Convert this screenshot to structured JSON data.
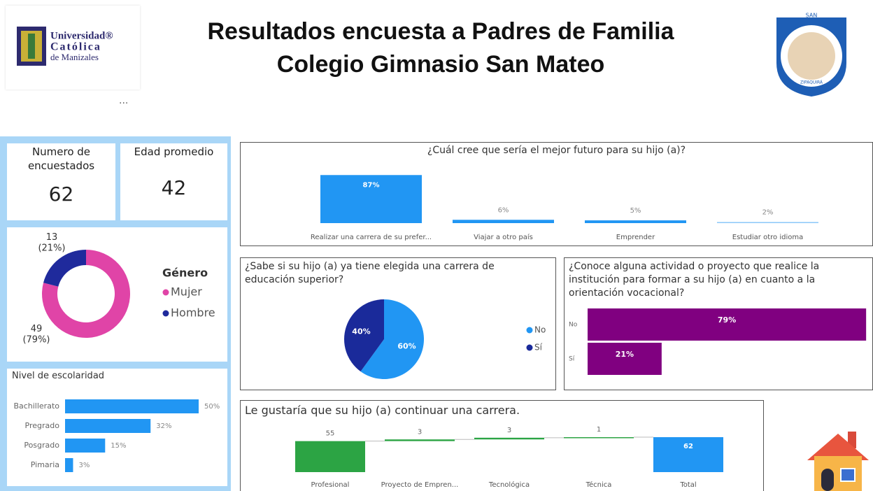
{
  "header": {
    "title": [
      "Resultados encuesta a Padres de Familia",
      "Colegio Gimnasio San Mateo"
    ],
    "logo_left": [
      "Universidad®",
      "Católica",
      "de Manizales"
    ],
    "menu": "...",
    "logo_right": [
      "SAN",
      "ZIPAQUIRÁ"
    ]
  },
  "kpis": [
    {
      "label": "Numero de encuestados",
      "value": 62
    },
    {
      "label": "Edad promedio",
      "value": 42
    }
  ],
  "chart_data": [
    {
      "type": "donut",
      "legend_title": "Género",
      "categories": [
        "Mujer",
        "Hombre"
      ],
      "values": [
        49,
        13
      ],
      "value_labels": [
        "49\n(79%)",
        "13\n(21%)"
      ],
      "colors": [
        "#e044a7",
        "#1f2a9c"
      ]
    },
    {
      "type": "hbar",
      "title": "Nivel de escolaridad",
      "categories": [
        "Bachillerato",
        "Pregrado",
        "Posgrado",
        "Pimaria"
      ],
      "values": [
        50,
        32,
        15,
        3
      ],
      "value_labels": [
        "50%",
        "32%",
        "15%",
        "3%"
      ],
      "color": "#2196f3"
    },
    {
      "type": "bar",
      "title": "¿Cuál cree que sería el mejor futuro para su hijo (a)?",
      "categories": [
        "Realizar una carrera de su prefer...",
        "Viajar a otro país",
        "Emprender",
        "Estudiar otro idioma"
      ],
      "values": [
        87,
        6,
        5,
        2
      ],
      "value_labels": [
        "87%",
        "6%",
        "5%",
        "2%"
      ],
      "colors": [
        "#2196f3",
        "#2196f3",
        "#2196f3",
        "#90caf9"
      ]
    },
    {
      "type": "pie",
      "title": "¿Sabe si su hijo (a) ya tiene elegida una carrera de educación superior?",
      "categories": [
        "No",
        "Sí"
      ],
      "values": [
        60,
        40
      ],
      "value_labels": [
        "60%",
        "40%"
      ],
      "colors": [
        "#2196f3",
        "#1a2a9a"
      ]
    },
    {
      "type": "hbar",
      "title": "¿Conoce alguna actividad o proyecto que realice la institución para formar a su hijo (a) en cuanto a la orientación vocacional?",
      "categories": [
        "No",
        "Sí"
      ],
      "values": [
        79,
        21
      ],
      "value_labels": [
        "79%",
        "21%"
      ],
      "color": "#800080"
    },
    {
      "type": "waterfall",
      "title": "Le gustaría que su hijo (a) continuar una carrera.",
      "categories": [
        "Profesional",
        "Proyecto de Empren...",
        "Tecnológica",
        "Técnica",
        "Total"
      ],
      "values": [
        55,
        3,
        3,
        1,
        62
      ],
      "total_last": true,
      "increase_color": "#2ca444",
      "total_color": "#2196f3"
    }
  ]
}
